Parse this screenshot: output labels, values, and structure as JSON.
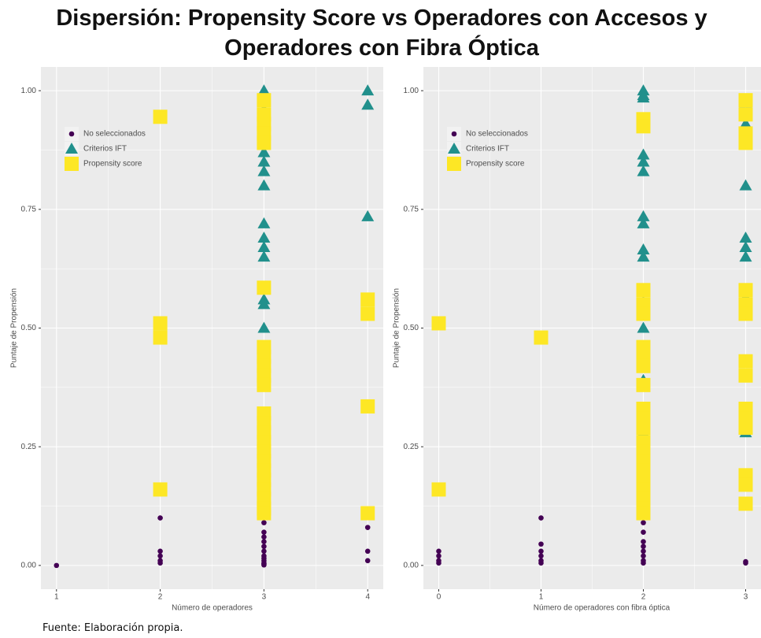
{
  "title": "Dispersión: Propensity Score vs Operadores con Accesos y Operadores con Fibra Óptica",
  "source": "Fuente: Elaboración propia.",
  "chart_data": [
    {
      "type": "scatter",
      "x_label": "Número de operadores",
      "y_label": "Puntaje de Propensión",
      "xlim": [
        0.85,
        4.15
      ],
      "ylim": [
        -0.05,
        1.05
      ],
      "xticks": [
        1,
        2,
        3,
        4
      ],
      "yticks": [
        {
          "value": 0,
          "label": "0.00"
        },
        {
          "value": 0.25,
          "label": "0.25"
        },
        {
          "value": 0.5,
          "label": "0.50"
        },
        {
          "value": 0.75,
          "label": "0.75"
        },
        {
          "value": 1,
          "label": "1.00"
        }
      ],
      "grid": true,
      "legend_position": "top-left",
      "series": [
        {
          "name": "No seleccionados",
          "color": "#440154",
          "marker": "circle",
          "x": [
            1,
            2,
            2,
            2,
            2,
            2,
            3,
            3,
            3,
            3,
            3,
            3,
            3,
            3,
            3,
            3,
            3,
            3,
            4,
            4,
            4
          ],
          "values": [
            0,
            0.1,
            0.03,
            0.02,
            0.01,
            0.005,
            0.09,
            0.07,
            0.06,
            0.05,
            0.04,
            0.03,
            0.02,
            0.015,
            0.01,
            0.005,
            0.003,
            0.001,
            0.08,
            0.03,
            0.01
          ]
        },
        {
          "name": "Criterios IFT",
          "color": "#21908C",
          "marker": "triangle",
          "x": [
            3,
            3,
            3,
            3,
            3,
            3,
            3,
            3,
            3,
            3,
            3,
            3,
            3,
            3,
            3,
            3,
            3,
            3,
            3,
            3,
            3,
            3,
            3,
            3,
            4,
            4,
            4
          ],
          "values": [
            1,
            0.99,
            0.98,
            0.96,
            0.9,
            0.89,
            0.87,
            0.85,
            0.83,
            0.8,
            0.72,
            0.69,
            0.67,
            0.65,
            0.56,
            0.55,
            0.5,
            0.45,
            0.4,
            0.3,
            0.28,
            0.27,
            0.24,
            0.21,
            1,
            0.97,
            0.735
          ]
        },
        {
          "name": "Propensity score",
          "color": "#FDE725",
          "marker": "square",
          "x": [
            2,
            2,
            2,
            2,
            3,
            3,
            3,
            3,
            3,
            3,
            3,
            3,
            3,
            3,
            3,
            3,
            3,
            3,
            3,
            3,
            3,
            3,
            3,
            3,
            3,
            3,
            3,
            4,
            4,
            4,
            4
          ],
          "values": [
            0.945,
            0.51,
            0.48,
            0.16,
            0.98,
            0.95,
            0.93,
            0.91,
            0.89,
            0.585,
            0.46,
            0.44,
            0.42,
            0.4,
            0.38,
            0.32,
            0.3,
            0.28,
            0.26,
            0.24,
            0.22,
            0.2,
            0.18,
            0.16,
            0.14,
            0.12,
            0.11,
            0.56,
            0.53,
            0.335,
            0.11
          ]
        }
      ]
    },
    {
      "type": "scatter",
      "x_label": "Número de operadores con fibra óptica",
      "y_label": "Puntaje de Propensión",
      "xlim": [
        -0.15,
        3.15
      ],
      "ylim": [
        -0.05,
        1.05
      ],
      "xticks": [
        0,
        1,
        2,
        3
      ],
      "yticks": [
        {
          "value": 0,
          "label": "0.00"
        },
        {
          "value": 0.25,
          "label": "0.25"
        },
        {
          "value": 0.5,
          "label": "0.50"
        },
        {
          "value": 0.75,
          "label": "0.75"
        },
        {
          "value": 1,
          "label": "1.00"
        }
      ],
      "grid": true,
      "legend_position": "top-left",
      "series": [
        {
          "name": "No seleccionados",
          "color": "#440154",
          "marker": "circle",
          "x": [
            0,
            0,
            0,
            0,
            1,
            1,
            1,
            1,
            1,
            1,
            2,
            2,
            2,
            2,
            2,
            2,
            2,
            2,
            3,
            3
          ],
          "values": [
            0.03,
            0.02,
            0.01,
            0.005,
            0.1,
            0.045,
            0.03,
            0.02,
            0.01,
            0.005,
            0.09,
            0.07,
            0.05,
            0.04,
            0.03,
            0.02,
            0.01,
            0.005,
            0.008,
            0.005
          ]
        },
        {
          "name": "Criterios IFT",
          "color": "#21908C",
          "marker": "triangle",
          "x": [
            2,
            2,
            2,
            2,
            2,
            2,
            2,
            2,
            2,
            2,
            2,
            2,
            2,
            2,
            2,
            2,
            2,
            2,
            2,
            3,
            3,
            3,
            3,
            3,
            3,
            3,
            3,
            3,
            3
          ],
          "values": [
            1,
            0.99,
            0.985,
            0.865,
            0.85,
            0.83,
            0.735,
            0.72,
            0.665,
            0.65,
            0.555,
            0.5,
            0.45,
            0.43,
            0.39,
            0.3,
            0.28,
            0.24,
            0.21,
            0.975,
            0.93,
            0.9,
            0.8,
            0.69,
            0.67,
            0.65,
            0.565,
            0.55,
            0.28
          ]
        },
        {
          "name": "Propensity score",
          "color": "#FDE725",
          "marker": "square",
          "x": [
            0,
            0,
            1,
            2,
            2,
            2,
            2,
            2,
            2,
            2,
            2,
            2,
            2,
            2,
            2,
            2,
            2,
            2,
            2,
            2,
            2,
            2,
            2,
            2,
            3,
            3,
            3,
            3,
            3,
            3,
            3,
            3,
            3,
            3,
            3,
            3,
            3,
            3,
            3
          ],
          "values": [
            0.51,
            0.16,
            0.48,
            0.94,
            0.925,
            0.58,
            0.55,
            0.53,
            0.46,
            0.44,
            0.42,
            0.38,
            0.33,
            0.31,
            0.29,
            0.26,
            0.24,
            0.22,
            0.2,
            0.18,
            0.16,
            0.14,
            0.12,
            0.11,
            0.98,
            0.95,
            0.91,
            0.89,
            0.58,
            0.55,
            0.53,
            0.43,
            0.4,
            0.33,
            0.31,
            0.29,
            0.19,
            0.17,
            0.13
          ]
        }
      ]
    }
  ]
}
